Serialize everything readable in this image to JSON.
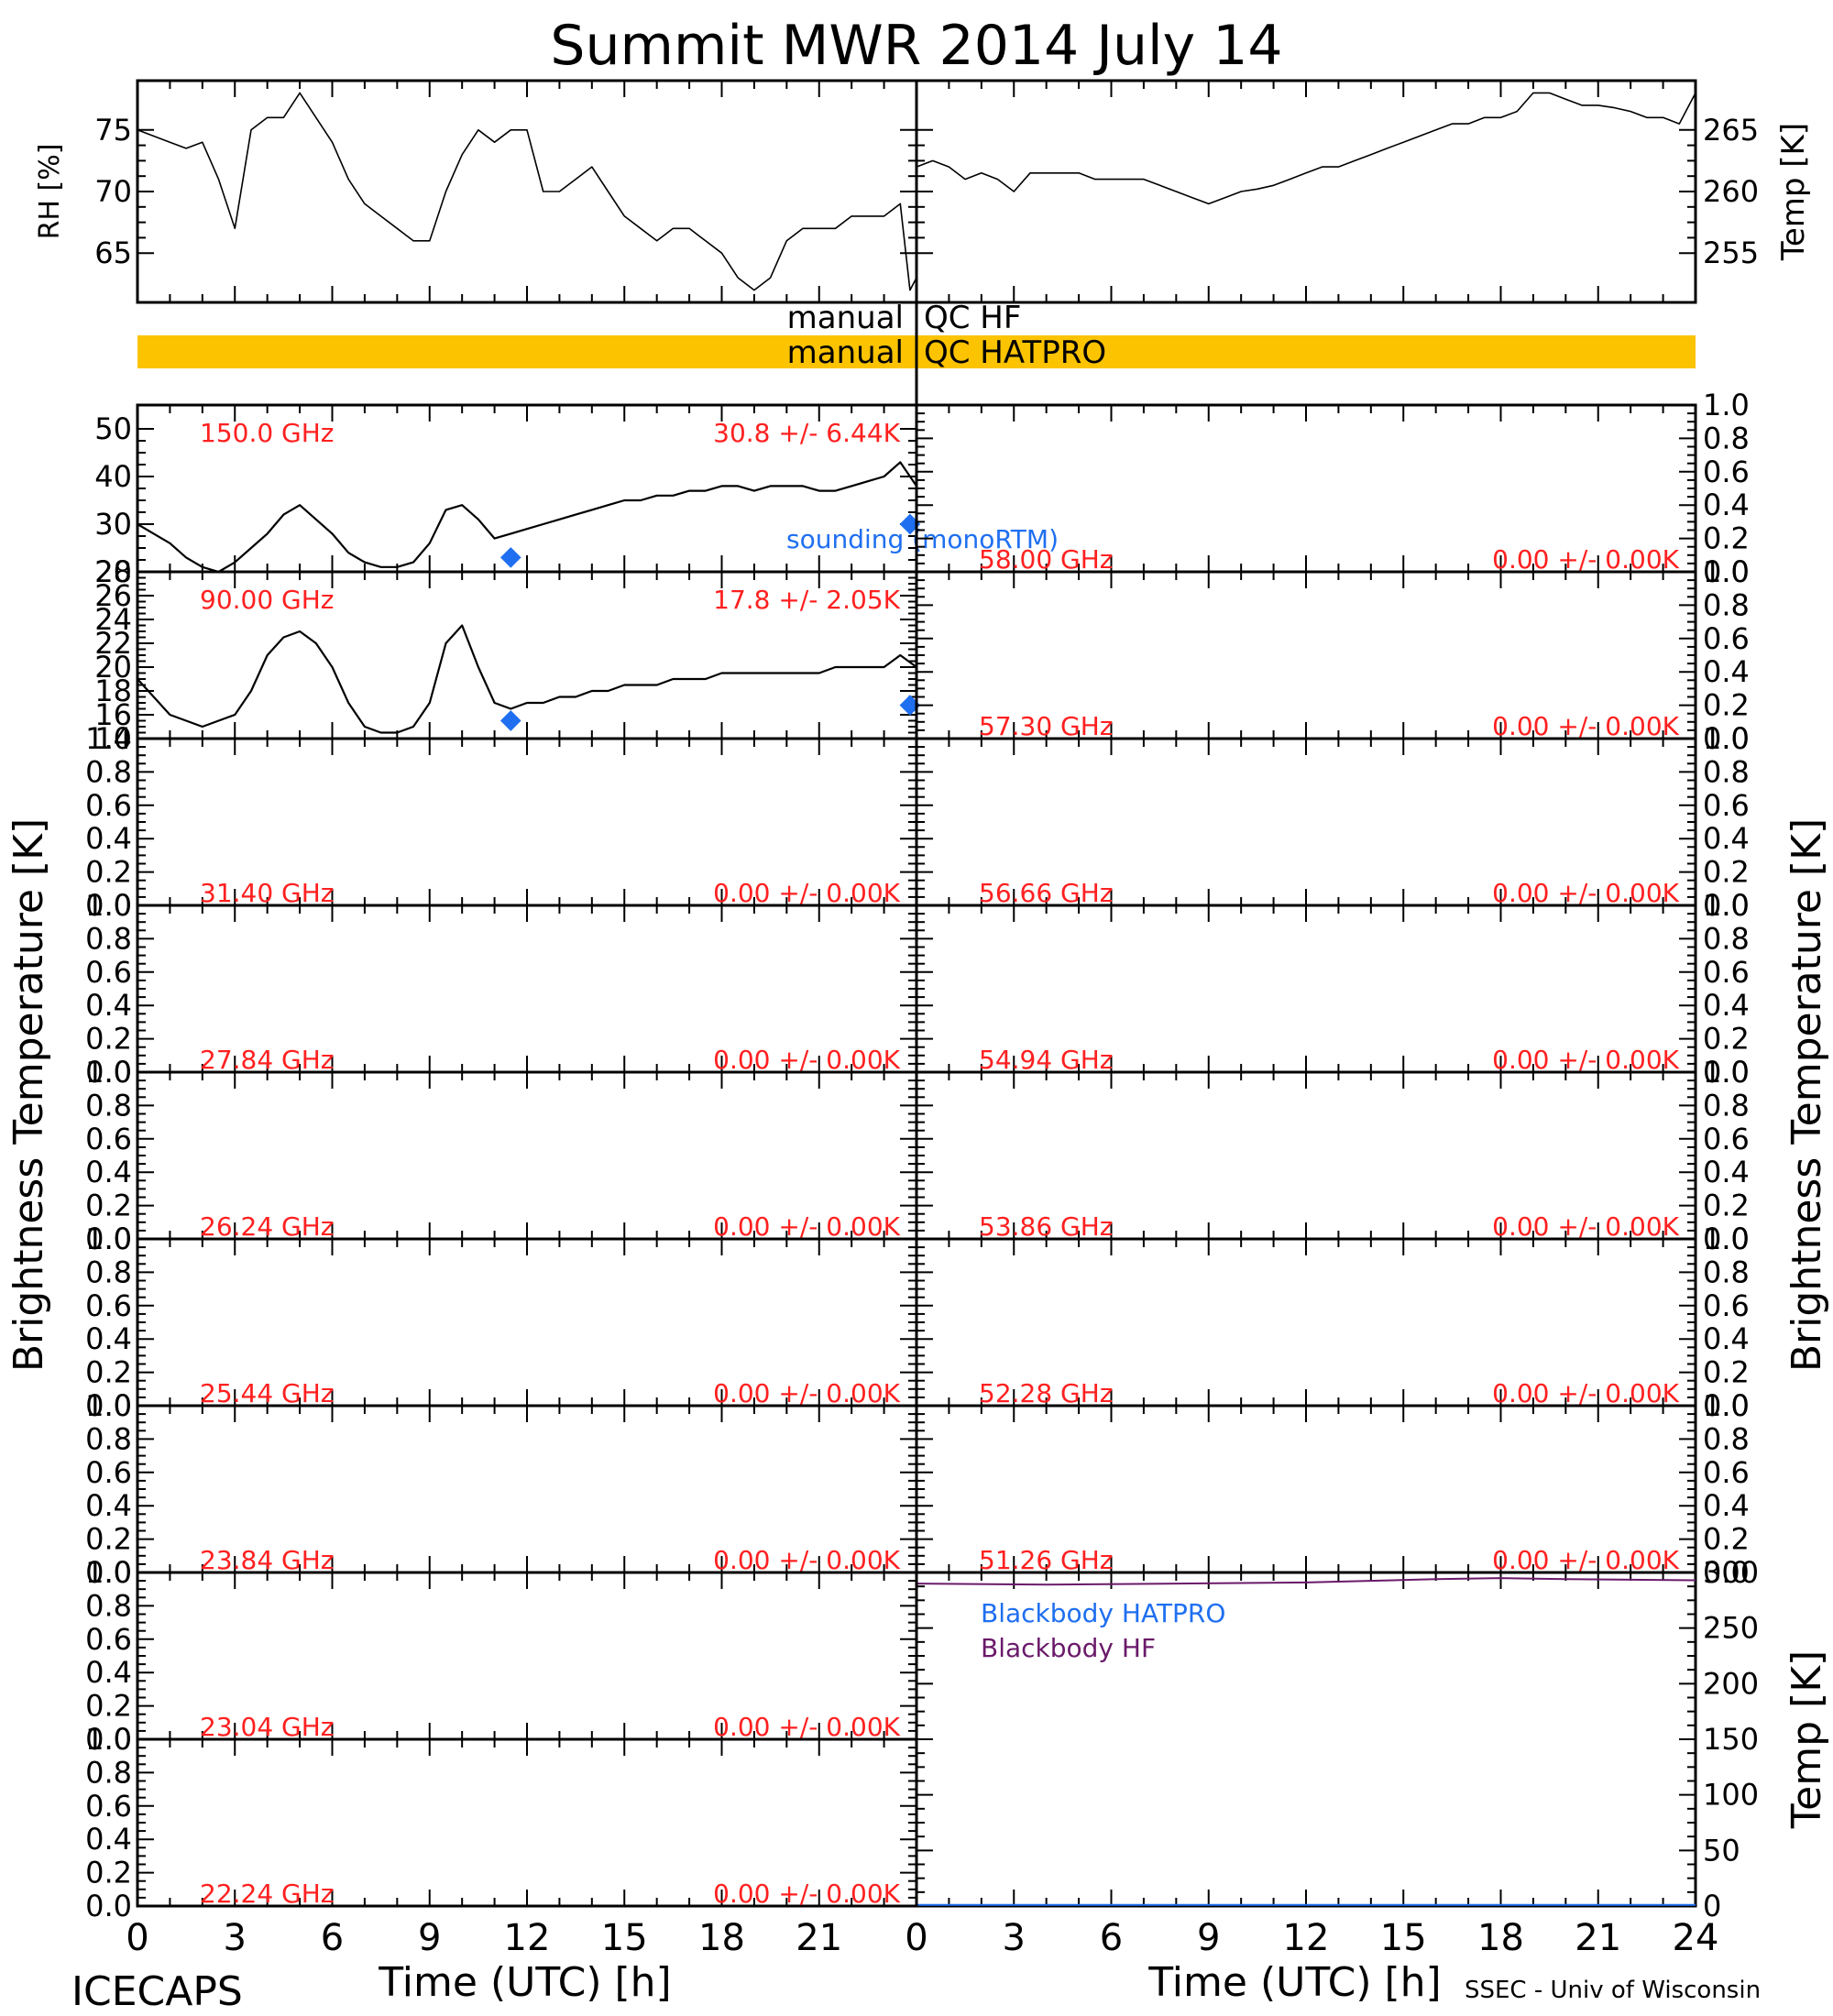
{
  "title": "Summit MWR 2014 July 14",
  "credit_left": "ICECAPS",
  "credit_right": "SSEC - Univ of Wisconsin",
  "xlabel": "Time (UTC) [h]",
  "ylabel_btemp": "Brightness Temperature [K]",
  "x_ticks": [
    "0",
    "3",
    "6",
    "9",
    "12",
    "15",
    "18",
    "21",
    "24"
  ],
  "qc": {
    "hf_label": [
      "manual",
      "QC HF"
    ],
    "hatpro_label": [
      "manual",
      "QC HATPRO"
    ],
    "bar_color": "#fbc300"
  },
  "colors": {
    "channel_label": "#ff2020",
    "sounding": "#1f6ff0",
    "data": "#000000",
    "bb_hatpro": "#1f6ff0",
    "bb_hf": "#6a1a6a"
  },
  "chart_data": [
    {
      "type": "line",
      "id": "rh",
      "ylabel": "RH [%]",
      "ylim": [
        61,
        79
      ],
      "xlim": [
        0,
        24
      ],
      "yticks": [
        "65",
        "70",
        "75"
      ],
      "x": [
        0,
        0.5,
        1,
        1.5,
        2,
        2.5,
        3,
        3.5,
        4,
        4.5,
        5,
        5.5,
        6,
        6.5,
        7,
        7.5,
        8,
        8.5,
        9,
        9.5,
        10,
        10.5,
        11,
        11.5,
        12,
        12.5,
        13,
        13.5,
        14,
        14.5,
        15,
        15.5,
        16,
        16.5,
        17,
        17.5,
        18,
        18.5,
        19,
        19.5,
        20,
        20.5,
        21,
        21.5,
        22,
        22.5,
        23,
        23.5,
        23.8,
        24
      ],
      "y": [
        75,
        74.5,
        74,
        73.5,
        74,
        71,
        67,
        75,
        76,
        76,
        78,
        76,
        74,
        71,
        69,
        68,
        67,
        66,
        66,
        70,
        73,
        75,
        74,
        75,
        75,
        70,
        70,
        71,
        72,
        70,
        68,
        67,
        66,
        67,
        67,
        66,
        65,
        63,
        62,
        63,
        66,
        67,
        67,
        67,
        68,
        68,
        68,
        69,
        62,
        63
      ]
    },
    {
      "type": "line",
      "id": "temp",
      "ylabel": "Temp [K]",
      "ylim": [
        251,
        269
      ],
      "xlim": [
        0,
        24
      ],
      "yticks": [
        "255",
        "260",
        "265"
      ],
      "x": [
        0,
        0.5,
        1,
        1.5,
        2,
        2.5,
        3,
        3.5,
        4,
        4.5,
        5,
        5.5,
        6,
        6.5,
        7,
        7.5,
        8,
        8.5,
        9,
        9.5,
        10,
        10.5,
        11,
        11.5,
        12,
        12.5,
        13,
        13.5,
        14,
        14.5,
        15,
        15.5,
        16,
        16.5,
        17,
        17.5,
        18,
        18.5,
        19,
        19.5,
        20,
        20.5,
        21,
        21.5,
        22,
        22.5,
        23,
        23.5,
        24
      ],
      "y": [
        262,
        262.5,
        262,
        261,
        261.5,
        261,
        260,
        261.5,
        261.5,
        261.5,
        261.5,
        261,
        261,
        261,
        261,
        260.5,
        260,
        259.5,
        259,
        259.5,
        260,
        260.2,
        260.5,
        261,
        261.5,
        262,
        262,
        262.5,
        263,
        263.5,
        264,
        264.5,
        265,
        265.5,
        265.5,
        266,
        266,
        266.5,
        268,
        268,
        267.5,
        267,
        267,
        266.8,
        266.5,
        266,
        266,
        265.5,
        268
      ]
    },
    {
      "type": "line",
      "id": "ch150",
      "channel": "150.0 GHz",
      "stats": "30.8 +/- 6.44K",
      "ylim": [
        20,
        55
      ],
      "xlim": [
        0,
        24
      ],
      "yticks": [
        "20",
        "30",
        "40",
        "50"
      ],
      "sounding_label": "sounding (monoRTM)",
      "sounding_points": [
        {
          "x": 11.5,
          "y": 23
        },
        {
          "x": 23.8,
          "y": 30
        }
      ],
      "x": [
        0,
        0.5,
        1,
        1.5,
        2,
        2.5,
        3,
        3.5,
        4,
        4.5,
        5,
        5.5,
        6,
        6.5,
        7,
        7.5,
        8,
        8.5,
        9,
        9.5,
        10,
        10.5,
        11,
        11.5,
        12,
        12.5,
        13,
        13.5,
        14,
        14.5,
        15,
        15.5,
        16,
        16.5,
        17,
        17.5,
        18,
        18.5,
        19,
        19.5,
        20,
        20.5,
        21,
        21.5,
        22,
        22.5,
        23,
        23.5,
        24
      ],
      "y": [
        30,
        28,
        26,
        23,
        21,
        20,
        22,
        25,
        28,
        32,
        34,
        31,
        28,
        24,
        22,
        21,
        21,
        22,
        26,
        33,
        34,
        31,
        27,
        28,
        29,
        30,
        31,
        32,
        33,
        34,
        35,
        35,
        36,
        36,
        37,
        37,
        38,
        38,
        37,
        38,
        38,
        38,
        37,
        37,
        38,
        39,
        40,
        43,
        38
      ]
    },
    {
      "type": "line",
      "id": "ch90",
      "channel": "90.00 GHz",
      "stats": "17.8 +/- 2.05K",
      "ylim": [
        14,
        28
      ],
      "xlim": [
        0,
        24
      ],
      "yticks": [
        "14",
        "16",
        "18",
        "20",
        "22",
        "24",
        "26",
        "28"
      ],
      "sounding_points": [
        {
          "x": 11.5,
          "y": 15.5
        },
        {
          "x": 23.8,
          "y": 16.8
        }
      ],
      "x": [
        0,
        0.5,
        1,
        1.5,
        2,
        2.5,
        3,
        3.5,
        4,
        4.5,
        5,
        5.5,
        6,
        6.5,
        7,
        7.5,
        8,
        8.5,
        9,
        9.5,
        10,
        10.5,
        11,
        11.5,
        12,
        12.5,
        13,
        13.5,
        14,
        14.5,
        15,
        15.5,
        16,
        16.5,
        17,
        17.5,
        18,
        18.5,
        19,
        19.5,
        20,
        20.5,
        21,
        21.5,
        22,
        22.5,
        23,
        23.5,
        24
      ],
      "y": [
        19,
        17.5,
        16,
        15.5,
        15,
        15.5,
        16,
        18,
        21,
        22.5,
        23,
        22,
        20,
        17,
        15,
        14.5,
        14.5,
        15,
        17,
        22,
        23.5,
        20,
        17,
        16.5,
        17,
        17,
        17.5,
        17.5,
        18,
        18,
        18.5,
        18.5,
        18.5,
        19,
        19,
        19,
        19.5,
        19.5,
        19.5,
        19.5,
        19.5,
        19.5,
        19.5,
        20,
        20,
        20,
        20,
        21,
        20
      ]
    },
    {
      "type": "line",
      "id": "blackbody",
      "ylabel": "Temp [K]",
      "ylim": [
        0,
        300
      ],
      "xlim": [
        0,
        24
      ],
      "yticks": [
        "0",
        "50",
        "100",
        "150",
        "200",
        "250",
        "300"
      ],
      "series": [
        {
          "name": "Blackbody HATPRO",
          "x": [
            0,
            24
          ],
          "y": [
            1,
            1
          ]
        },
        {
          "name": "Blackbody HF",
          "x": [
            0,
            4,
            8,
            12,
            16,
            18,
            20,
            24
          ],
          "y": [
            290,
            289,
            290,
            291,
            294,
            295,
            294,
            293
          ]
        }
      ]
    }
  ],
  "empty_panels": {
    "yticks": [
      "0.0",
      "0.2",
      "0.4",
      "0.6",
      "0.8",
      "1.0"
    ],
    "stats": "0.00 +/- 0.00K",
    "left": [
      "31.40 GHz",
      "27.84 GHz",
      "26.24 GHz",
      "25.44 GHz",
      "23.84 GHz",
      "23.04 GHz",
      "22.24 GHz"
    ],
    "right": [
      "58.00 GHz",
      "57.30 GHz",
      "56.66 GHz",
      "54.94 GHz",
      "53.86 GHz",
      "52.28 GHz",
      "51.26 GHz"
    ]
  }
}
